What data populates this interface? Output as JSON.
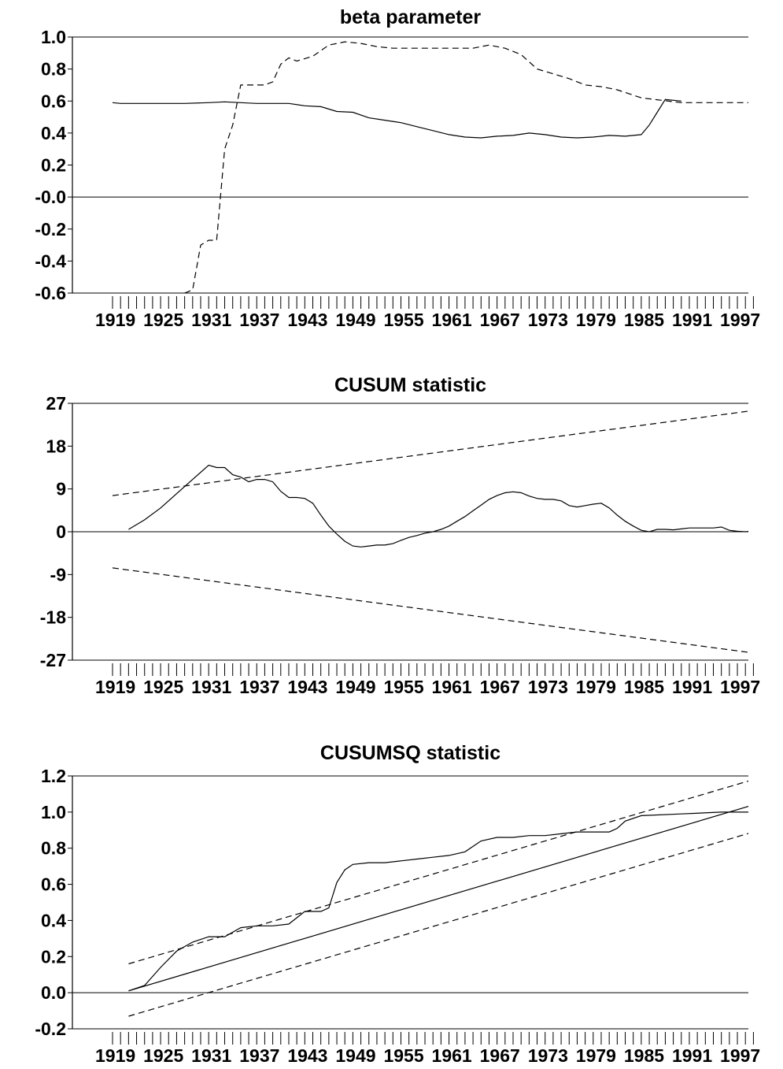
{
  "chart_data": [
    {
      "type": "line",
      "title": "beta parameter",
      "xlabel": "",
      "ylabel": "",
      "xlim": [
        1919,
        1999
      ],
      "ylim": [
        -0.6,
        1.0
      ],
      "yticks": [
        1.0,
        0.8,
        0.6,
        0.4,
        0.2,
        -0.0,
        -0.2,
        -0.4,
        -0.6
      ],
      "ytick_labels": [
        "1.0",
        "0.8",
        "0.6",
        "0.4",
        "0.2",
        "-0.0",
        "-0.2",
        "-0.4",
        "-0.6"
      ],
      "xtick_labels": [
        "1919",
        "1925",
        "1931",
        "1937",
        "1943",
        "1949",
        "1955",
        "1961",
        "1967",
        "1973",
        "1979",
        "1985",
        "1991",
        "1997"
      ],
      "grid": false,
      "zero_line": true,
      "series": [
        {
          "style": "solid",
          "x": [
            1919,
            1920,
            1922,
            1925,
            1928,
            1931,
            1933,
            1935,
            1937,
            1939,
            1941,
            1943,
            1945,
            1947,
            1949,
            1951,
            1953,
            1955,
            1957,
            1959,
            1961,
            1963,
            1965,
            1967,
            1969,
            1971,
            1973,
            1975,
            1977,
            1979,
            1981,
            1983,
            1985,
            1986,
            1987,
            1988,
            1990
          ],
          "y": [
            0.59,
            0.585,
            0.585,
            0.585,
            0.585,
            0.59,
            0.595,
            0.59,
            0.585,
            0.585,
            0.585,
            0.57,
            0.565,
            0.535,
            0.53,
            0.495,
            0.48,
            0.465,
            0.44,
            0.415,
            0.39,
            0.375,
            0.37,
            0.38,
            0.385,
            0.4,
            0.39,
            0.375,
            0.37,
            0.375,
            0.385,
            0.38,
            0.39,
            0.45,
            0.53,
            0.61,
            0.6
          ]
        },
        {
          "style": "dashed",
          "x": [
            1928,
            1929,
            1930,
            1931,
            1932,
            1933,
            1934,
            1935,
            1936,
            1937,
            1938,
            1939,
            1940,
            1941,
            1942,
            1944,
            1946,
            1948,
            1950,
            1952,
            1954,
            1956,
            1958,
            1960,
            1962,
            1964,
            1966,
            1968,
            1970,
            1972,
            1974,
            1976,
            1978,
            1980,
            1982,
            1985,
            1990,
            1995,
            1999
          ],
          "y": [
            -0.6,
            -0.58,
            -0.3,
            -0.27,
            -0.27,
            0.3,
            0.45,
            0.7,
            0.7,
            0.7,
            0.7,
            0.72,
            0.83,
            0.87,
            0.85,
            0.88,
            0.95,
            0.97,
            0.96,
            0.94,
            0.93,
            0.93,
            0.93,
            0.93,
            0.93,
            0.93,
            0.95,
            0.93,
            0.89,
            0.8,
            0.77,
            0.74,
            0.7,
            0.69,
            0.67,
            0.62,
            0.59,
            0.59,
            0.59
          ]
        }
      ]
    },
    {
      "type": "line",
      "title": "CUSUM statistic",
      "xlabel": "",
      "ylabel": "",
      "xlim": [
        1919,
        1999
      ],
      "ylim": [
        -27,
        27
      ],
      "yticks": [
        27,
        18,
        9,
        0,
        -9,
        -18,
        -27
      ],
      "ytick_labels": [
        "27",
        "18",
        "9",
        "0",
        "-9",
        "-18",
        "-27"
      ],
      "xtick_labels": [
        "1919",
        "1925",
        "1931",
        "1937",
        "1943",
        "1949",
        "1955",
        "1961",
        "1967",
        "1973",
        "1979",
        "1985",
        "1991",
        "1997"
      ],
      "grid": false,
      "zero_line": true,
      "series": [
        {
          "style": "solid",
          "x": [
            1921,
            1923,
            1925,
            1927,
            1929,
            1931,
            1932,
            1933,
            1934,
            1935,
            1936,
            1937,
            1938,
            1939,
            1940,
            1941,
            1942,
            1943,
            1944,
            1945,
            1946,
            1947,
            1948,
            1949,
            1950,
            1951,
            1952,
            1953,
            1954,
            1955,
            1956,
            1957,
            1958,
            1959,
            1960,
            1961,
            1962,
            1963,
            1964,
            1965,
            1966,
            1967,
            1968,
            1969,
            1970,
            1971,
            1972,
            1973,
            1974,
            1975,
            1976,
            1977,
            1978,
            1979,
            1980,
            1981,
            1982,
            1983,
            1984,
            1985,
            1986,
            1987,
            1988,
            1989,
            1990,
            1991,
            1992,
            1993,
            1994,
            1995,
            1996,
            1997,
            1998,
            1999
          ],
          "y": [
            0.5,
            2.5,
            5,
            8,
            11,
            14,
            13.5,
            13.5,
            12,
            11.5,
            10.5,
            11,
            11,
            10.5,
            8.5,
            7.2,
            7.2,
            7,
            6,
            3.5,
            1.2,
            -0.5,
            -2,
            -3,
            -3.2,
            -3,
            -2.8,
            -2.8,
            -2.5,
            -1.8,
            -1.2,
            -0.8,
            -0.3,
            0,
            0.5,
            1.2,
            2.2,
            3.2,
            4.4,
            5.6,
            6.8,
            7.6,
            8.2,
            8.4,
            8.2,
            7.5,
            7,
            6.8,
            6.8,
            6.5,
            5.5,
            5.2,
            5.5,
            5.8,
            6,
            5,
            3.5,
            2.2,
            1.2,
            0.3,
            0,
            0.5,
            0.5,
            0.4,
            0.6,
            0.8,
            0.8,
            0.8,
            0.8,
            1,
            0.3,
            0.1,
            0,
            0.2
          ]
        },
        {
          "style": "dashed",
          "x": [
            1919,
            1999
          ],
          "y": [
            7.6,
            25.5
          ]
        },
        {
          "style": "dashed",
          "x": [
            1919,
            1999
          ],
          "y": [
            -7.6,
            -25.5
          ]
        }
      ]
    },
    {
      "type": "line",
      "title": "CUSUMSQ statistic",
      "xlabel": "",
      "ylabel": "",
      "xlim": [
        1919,
        1999
      ],
      "ylim": [
        -0.2,
        1.2
      ],
      "yticks": [
        1.2,
        1.0,
        0.8,
        0.6,
        0.4,
        0.2,
        0.0,
        -0.2
      ],
      "ytick_labels": [
        "1.2",
        "1.0",
        "0.8",
        "0.6",
        "0.4",
        "0.2",
        "0.0",
        "-0.2"
      ],
      "xtick_labels": [
        "1919",
        "1925",
        "1931",
        "1937",
        "1943",
        "1949",
        "1955",
        "1961",
        "1967",
        "1973",
        "1979",
        "1985",
        "1991",
        "1997"
      ],
      "grid": false,
      "zero_line": true,
      "series": [
        {
          "style": "solid",
          "x": [
            1921,
            1923,
            1925,
            1927,
            1929,
            1931,
            1933,
            1935,
            1937,
            1939,
            1941,
            1943,
            1945,
            1946,
            1947,
            1948,
            1949,
            1951,
            1953,
            1955,
            1957,
            1959,
            1961,
            1963,
            1965,
            1967,
            1969,
            1971,
            1973,
            1975,
            1977,
            1979,
            1981,
            1982,
            1983,
            1985,
            1990,
            1995,
            1999
          ],
          "y": [
            0.01,
            0.04,
            0.14,
            0.23,
            0.28,
            0.31,
            0.31,
            0.36,
            0.37,
            0.37,
            0.38,
            0.45,
            0.45,
            0.47,
            0.61,
            0.68,
            0.71,
            0.72,
            0.72,
            0.73,
            0.74,
            0.75,
            0.76,
            0.78,
            0.84,
            0.86,
            0.86,
            0.87,
            0.87,
            0.88,
            0.89,
            0.89,
            0.89,
            0.91,
            0.95,
            0.98,
            0.99,
            1.0,
            1.0
          ]
        },
        {
          "style": "solid",
          "x": [
            1921,
            1999
          ],
          "y": [
            0.01,
            1.04
          ]
        },
        {
          "style": "dashed",
          "x": [
            1921,
            1999
          ],
          "y": [
            0.16,
            1.18
          ]
        },
        {
          "style": "dashed",
          "x": [
            1921,
            1999
          ],
          "y": [
            -0.13,
            0.89
          ]
        }
      ]
    }
  ]
}
